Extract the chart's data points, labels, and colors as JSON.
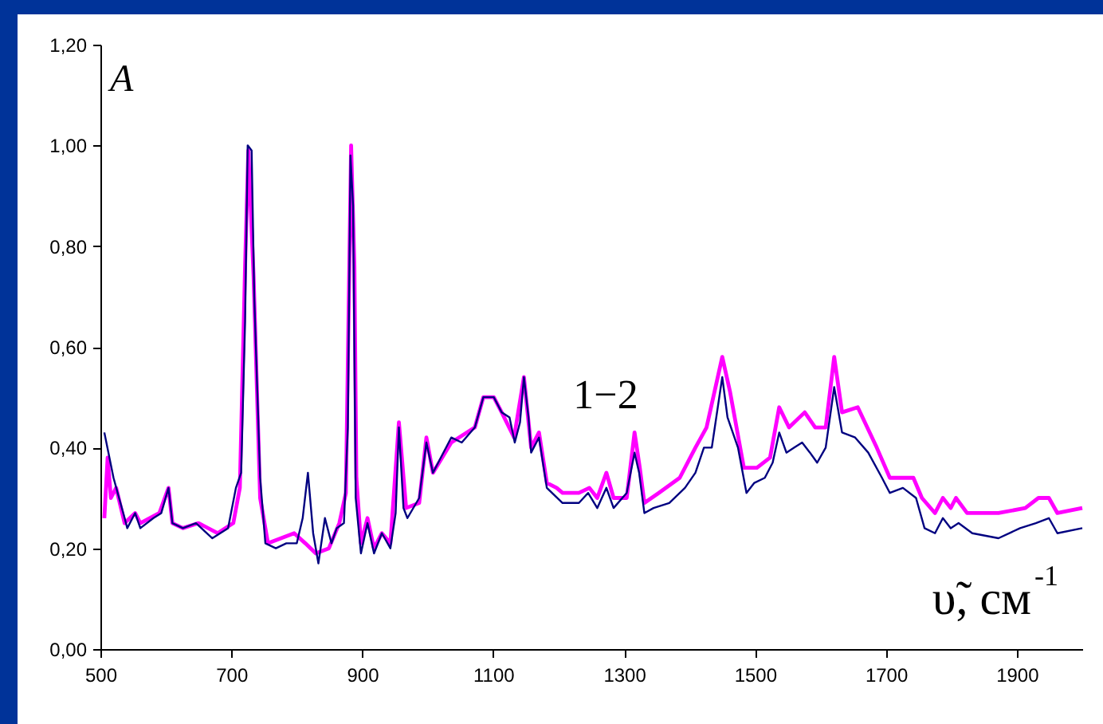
{
  "chart_data": {
    "type": "line",
    "xlabel": "υ̃, см$^{-1}$",
    "ylabel": "A",
    "xlim": [
      500,
      2000
    ],
    "xticks": [
      500,
      700,
      900,
      1100,
      1300,
      1500,
      1700,
      1900
    ],
    "ylim": [
      0,
      1.2
    ],
    "yticks": [
      {
        "value": 0,
        "label": "0,00"
      },
      {
        "value": 0.2,
        "label": "0,20"
      },
      {
        "value": 0.4,
        "label": "0,40"
      },
      {
        "value": 0.6,
        "label": "0,60"
      },
      {
        "value": 0.8,
        "label": "0,80"
      },
      {
        "value": 1,
        "label": "1,00"
      },
      {
        "value": 1.2,
        "label": "1,20"
      }
    ],
    "grid": false,
    "annotations": [
      "1−2"
    ],
    "series": [
      {
        "color": "#ff00ff",
        "x": [
          506,
          511,
          516,
          524,
          537,
          553,
          561,
          590,
          604,
          610,
          626,
          650,
          679,
          703,
          713,
          721,
          726,
          734,
          744,
          756,
          776,
          796,
          813,
          829,
          849,
          865,
          875,
          883,
          888,
          891,
          898,
          908,
          918,
          930,
          943,
          956,
          967,
          987,
          998,
          1008,
          1036,
          1072,
          1085,
          1101,
          1113,
          1132,
          1147,
          1158,
          1170,
          1182,
          1197,
          1206,
          1231,
          1247,
          1259,
          1273,
          1284,
          1304,
          1316,
          1324,
          1331,
          1353,
          1385,
          1409,
          1426,
          1450,
          1462,
          1483,
          1503,
          1523,
          1537,
          1552,
          1576,
          1592,
          1608,
          1621,
          1633,
          1657,
          1686,
          1706,
          1726,
          1742,
          1755,
          1775,
          1787,
          1799,
          1807,
          1824,
          1872,
          1913,
          1933,
          1949,
          1962,
          2000
        ],
        "values": [
          0.26,
          0.38,
          0.3,
          0.32,
          0.25,
          0.27,
          0.25,
          0.27,
          0.32,
          0.25,
          0.24,
          0.25,
          0.23,
          0.25,
          0.32,
          0.76,
          0.99,
          0.74,
          0.3,
          0.21,
          0.22,
          0.23,
          0.21,
          0.19,
          0.2,
          0.25,
          0.31,
          1.0,
          0.76,
          0.34,
          0.21,
          0.26,
          0.2,
          0.23,
          0.21,
          0.45,
          0.28,
          0.29,
          0.42,
          0.35,
          0.41,
          0.44,
          0.5,
          0.5,
          0.47,
          0.42,
          0.54,
          0.4,
          0.43,
          0.33,
          0.32,
          0.31,
          0.31,
          0.32,
          0.3,
          0.35,
          0.3,
          0.3,
          0.43,
          0.36,
          0.29,
          0.31,
          0.34,
          0.4,
          0.44,
          0.58,
          0.51,
          0.36,
          0.36,
          0.38,
          0.48,
          0.44,
          0.47,
          0.44,
          0.44,
          0.58,
          0.47,
          0.48,
          0.4,
          0.34,
          0.34,
          0.34,
          0.3,
          0.27,
          0.3,
          0.28,
          0.3,
          0.27,
          0.27,
          0.28,
          0.3,
          0.3,
          0.27,
          0.28
        ]
      },
      {
        "color": "#000080",
        "x": [
          506,
          520,
          537,
          541,
          553,
          561,
          581,
          593,
          604,
          610,
          626,
          646,
          671,
          695,
          707,
          715,
          721,
          725,
          731,
          735,
          744,
          752,
          768,
          784,
          800,
          809,
          817,
          825,
          833,
          843,
          853,
          861,
          872,
          878,
          882,
          886,
          890,
          898,
          908,
          918,
          930,
          943,
          951,
          956,
          963,
          969,
          987,
          998,
          1008,
          1020,
          1036,
          1052,
          1072,
          1085,
          1101,
          1113,
          1125,
          1133,
          1141,
          1147,
          1154,
          1158,
          1170,
          1182,
          1206,
          1231,
          1245,
          1259,
          1273,
          1284,
          1304,
          1316,
          1323,
          1331,
          1345,
          1369,
          1393,
          1409,
          1422,
          1434,
          1450,
          1458,
          1474,
          1487,
          1499,
          1515,
          1527,
          1537,
          1548,
          1560,
          1572,
          1584,
          1595,
          1608,
          1621,
          1633,
          1653,
          1673,
          1694,
          1706,
          1726,
          1746,
          1759,
          1775,
          1787,
          1799,
          1811,
          1832,
          1872,
          1905,
          1929,
          1949,
          1962,
          2000
        ],
        "values": [
          0.43,
          0.34,
          0.26,
          0.24,
          0.27,
          0.24,
          0.26,
          0.27,
          0.32,
          0.25,
          0.24,
          0.25,
          0.22,
          0.24,
          0.32,
          0.35,
          0.65,
          1.0,
          0.99,
          0.7,
          0.34,
          0.21,
          0.2,
          0.21,
          0.21,
          0.26,
          0.35,
          0.23,
          0.17,
          0.26,
          0.21,
          0.24,
          0.25,
          0.44,
          0.98,
          0.88,
          0.3,
          0.19,
          0.25,
          0.19,
          0.23,
          0.2,
          0.27,
          0.44,
          0.28,
          0.26,
          0.3,
          0.41,
          0.35,
          0.38,
          0.42,
          0.41,
          0.44,
          0.5,
          0.5,
          0.47,
          0.46,
          0.41,
          0.45,
          0.54,
          0.46,
          0.39,
          0.42,
          0.32,
          0.29,
          0.29,
          0.31,
          0.28,
          0.32,
          0.28,
          0.31,
          0.39,
          0.35,
          0.27,
          0.28,
          0.29,
          0.32,
          0.35,
          0.4,
          0.4,
          0.54,
          0.46,
          0.4,
          0.31,
          0.33,
          0.34,
          0.37,
          0.43,
          0.39,
          0.4,
          0.41,
          0.39,
          0.37,
          0.4,
          0.52,
          0.43,
          0.42,
          0.39,
          0.34,
          0.31,
          0.32,
          0.3,
          0.24,
          0.23,
          0.26,
          0.24,
          0.25,
          0.23,
          0.22,
          0.24,
          0.25,
          0.26,
          0.23,
          0.24
        ]
      }
    ]
  }
}
